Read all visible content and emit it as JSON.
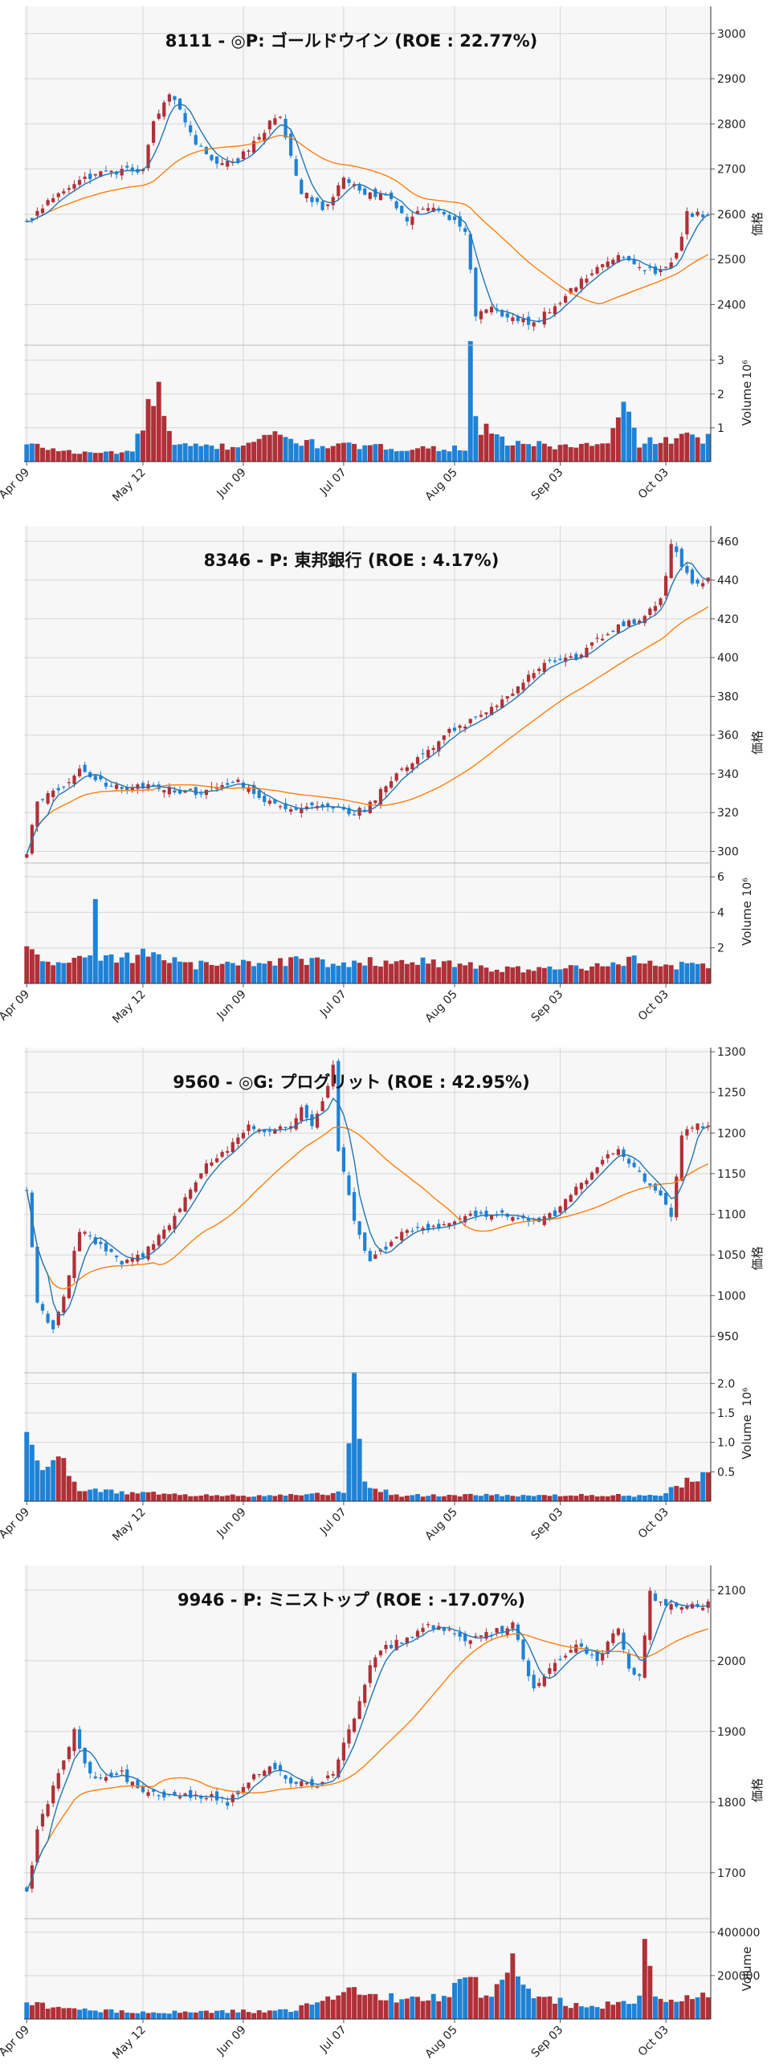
{
  "colors": {
    "up": "#b03038",
    "down": "#1f82d6",
    "ma_short": "#1f77b4",
    "ma_long": "#ff7f0e",
    "grid": "#d6d6d6",
    "panel": "#f7f7f7"
  },
  "x_tick_labels": [
    "Apr 09",
    "May 12",
    "Jun 09",
    "Jul 07",
    "Aug 05",
    "Sep 03",
    "Oct 03"
  ],
  "chart_data": [
    {
      "type": "candlestick",
      "title": "8111 - ◎P: ゴールドウイン (ROE : 22.77%)",
      "ylabel": "価格",
      "volume_label": "Volume",
      "volume_exponent": "10⁶",
      "ylim": [
        2310,
        3060
      ],
      "y_ticks": [
        2400,
        2500,
        2600,
        2700,
        2800,
        2900,
        3000
      ],
      "volume_ylim": [
        0,
        3.3
      ],
      "volume_ticks": [
        1,
        2,
        3
      ],
      "volume_tick_labels": [
        "1",
        "2",
        "3"
      ],
      "anchors": [
        [
          0,
          2580
        ],
        [
          6,
          2650
        ],
        [
          13,
          2690
        ],
        [
          22,
          2700
        ],
        [
          24,
          2800
        ],
        [
          27,
          2870
        ],
        [
          32,
          2760
        ],
        [
          36,
          2710
        ],
        [
          40,
          2720
        ],
        [
          46,
          2800
        ],
        [
          48,
          2810
        ],
        [
          52,
          2650
        ],
        [
          56,
          2610
        ],
        [
          60,
          2680
        ],
        [
          64,
          2650
        ],
        [
          68,
          2640
        ],
        [
          72,
          2590
        ],
        [
          76,
          2620
        ],
        [
          80,
          2590
        ],
        [
          83,
          2560
        ],
        [
          85,
          2380
        ],
        [
          88,
          2390
        ],
        [
          92,
          2370
        ],
        [
          96,
          2360
        ],
        [
          100,
          2400
        ],
        [
          104,
          2440
        ],
        [
          108,
          2480
        ],
        [
          112,
          2510
        ],
        [
          116,
          2480
        ],
        [
          120,
          2470
        ],
        [
          123,
          2510
        ],
        [
          125,
          2600
        ]
      ],
      "volume_anchors": [
        [
          0,
          0.5
        ],
        [
          10,
          0.25
        ],
        [
          20,
          0.3
        ],
        [
          25,
          2.3
        ],
        [
          26,
          1.25
        ],
        [
          28,
          0.45
        ],
        [
          40,
          0.45
        ],
        [
          45,
          0.8
        ],
        [
          55,
          0.5
        ],
        [
          70,
          0.4
        ],
        [
          83,
          0.4
        ],
        [
          84,
          3.0
        ],
        [
          85,
          1.1
        ],
        [
          90,
          0.6
        ],
        [
          100,
          0.45
        ],
        [
          110,
          0.5
        ],
        [
          113,
          1.6
        ],
        [
          116,
          0.55
        ],
        [
          125,
          0.7
        ]
      ]
    },
    {
      "type": "candlestick",
      "title": "8346 - P: 東邦銀行 (ROE : 4.17%)",
      "ylabel": "価格",
      "volume_label": "Volume",
      "volume_exponent": "10⁶",
      "ylim": [
        294,
        468
      ],
      "y_ticks": [
        300,
        320,
        340,
        360,
        380,
        400,
        420,
        440,
        460
      ],
      "volume_ylim": [
        0,
        6.5
      ],
      "volume_ticks": [
        2,
        4,
        6
      ],
      "volume_tick_labels": [
        "2",
        "4",
        "6"
      ],
      "anchors": [
        [
          0,
          300
        ],
        [
          2,
          325
        ],
        [
          6,
          332
        ],
        [
          10,
          341
        ],
        [
          14,
          336
        ],
        [
          18,
          332
        ],
        [
          24,
          334
        ],
        [
          32,
          330
        ],
        [
          40,
          336
        ],
        [
          44,
          328
        ],
        [
          48,
          322
        ],
        [
          56,
          323
        ],
        [
          62,
          320
        ],
        [
          64,
          322
        ],
        [
          70,
          340
        ],
        [
          76,
          352
        ],
        [
          80,
          362
        ],
        [
          86,
          370
        ],
        [
          92,
          383
        ],
        [
          98,
          398
        ],
        [
          104,
          400
        ],
        [
          110,
          413
        ],
        [
          116,
          420
        ],
        [
          120,
          429
        ],
        [
          122,
          458
        ],
        [
          124,
          448
        ],
        [
          126,
          438
        ],
        [
          128,
          440
        ]
      ],
      "volume_anchors": [
        [
          0,
          2.0
        ],
        [
          5,
          1.0
        ],
        [
          12,
          1.5
        ],
        [
          13,
          5.8
        ],
        [
          14,
          1.4
        ],
        [
          20,
          1.5
        ],
        [
          25,
          1.7
        ],
        [
          30,
          1.0
        ],
        [
          40,
          1.1
        ],
        [
          50,
          1.3
        ],
        [
          60,
          1.1
        ],
        [
          70,
          1.3
        ],
        [
          80,
          1.1
        ],
        [
          90,
          0.8
        ],
        [
          100,
          0.8
        ],
        [
          110,
          1.0
        ],
        [
          114,
          1.4
        ],
        [
          118,
          1.1
        ],
        [
          128,
          0.9
        ]
      ]
    },
    {
      "type": "candlestick",
      "title": "9560 - ◎G: プログリット (ROE : 42.95%)",
      "ylabel": "価格",
      "volume_label": "Volume",
      "volume_exponent": "10⁶",
      "ylim": [
        905,
        1305
      ],
      "y_ticks": [
        950,
        1000,
        1050,
        1100,
        1150,
        1200,
        1250,
        1300
      ],
      "volume_ylim": [
        0,
        2.1
      ],
      "volume_ticks": [
        0.5,
        1.0,
        1.5,
        2.0
      ],
      "volume_tick_labels": [
        "0.5",
        "1.0",
        "1.5",
        "2.0"
      ],
      "anchors": [
        [
          0,
          1130
        ],
        [
          2,
          990
        ],
        [
          5,
          960
        ],
        [
          7,
          1000
        ],
        [
          10,
          1080
        ],
        [
          14,
          1060
        ],
        [
          18,
          1040
        ],
        [
          22,
          1050
        ],
        [
          26,
          1080
        ],
        [
          30,
          1120
        ],
        [
          34,
          1160
        ],
        [
          38,
          1180
        ],
        [
          42,
          1210
        ],
        [
          46,
          1200
        ],
        [
          50,
          1210
        ],
        [
          52,
          1230
        ],
        [
          54,
          1210
        ],
        [
          56,
          1240
        ],
        [
          58,
          1280
        ],
        [
          59,
          1180
        ],
        [
          62,
          1090
        ],
        [
          65,
          1040
        ],
        [
          68,
          1060
        ],
        [
          72,
          1080
        ],
        [
          78,
          1085
        ],
        [
          84,
          1100
        ],
        [
          90,
          1100
        ],
        [
          96,
          1090
        ],
        [
          100,
          1100
        ],
        [
          104,
          1130
        ],
        [
          108,
          1160
        ],
        [
          112,
          1180
        ],
        [
          116,
          1150
        ],
        [
          120,
          1120
        ],
        [
          122,
          1100
        ],
        [
          124,
          1200
        ],
        [
          126,
          1210
        ]
      ],
      "volume_anchors": [
        [
          0,
          1.1
        ],
        [
          4,
          0.5
        ],
        [
          6,
          0.9
        ],
        [
          10,
          0.2
        ],
        [
          20,
          0.15
        ],
        [
          30,
          0.1
        ],
        [
          50,
          0.1
        ],
        [
          60,
          0.15
        ],
        [
          62,
          2.0
        ],
        [
          63,
          0.9
        ],
        [
          64,
          0.3
        ],
        [
          70,
          0.1
        ],
        [
          100,
          0.1
        ],
        [
          120,
          0.1
        ],
        [
          126,
          0.4
        ]
      ]
    },
    {
      "type": "candlestick",
      "title": "9946 - P: ミニストップ (ROE : -17.07%)",
      "ylabel": "価格",
      "volume_label": "Volume",
      "volume_exponent": "",
      "ylim": [
        1635,
        2135
      ],
      "y_ticks": [
        1700,
        1800,
        1900,
        2000,
        2100
      ],
      "volume_ylim": [
        0,
        440000
      ],
      "volume_ticks": [
        200000,
        400000
      ],
      "volume_tick_labels": [
        "200000",
        "400000"
      ],
      "anchors": [
        [
          0,
          1670
        ],
        [
          2,
          1760
        ],
        [
          5,
          1820
        ],
        [
          9,
          1900
        ],
        [
          11,
          1850
        ],
        [
          14,
          1830
        ],
        [
          18,
          1840
        ],
        [
          22,
          1810
        ],
        [
          30,
          1810
        ],
        [
          34,
          1810
        ],
        [
          38,
          1800
        ],
        [
          42,
          1830
        ],
        [
          46,
          1850
        ],
        [
          50,
          1830
        ],
        [
          54,
          1820
        ],
        [
          58,
          1840
        ],
        [
          62,
          1920
        ],
        [
          65,
          1990
        ],
        [
          68,
          2020
        ],
        [
          72,
          2030
        ],
        [
          76,
          2050
        ],
        [
          80,
          2040
        ],
        [
          84,
          2030
        ],
        [
          88,
          2040
        ],
        [
          92,
          2050
        ],
        [
          96,
          1960
        ],
        [
          100,
          2000
        ],
        [
          104,
          2020
        ],
        [
          108,
          2000
        ],
        [
          112,
          2050
        ],
        [
          114,
          1990
        ],
        [
          116,
          1980
        ],
        [
          118,
          2100
        ],
        [
          119,
          2080
        ]
      ],
      "volume_anchors": [
        [
          0,
          70000
        ],
        [
          10,
          40000
        ],
        [
          30,
          30000
        ],
        [
          50,
          40000
        ],
        [
          58,
          90000
        ],
        [
          60,
          150000
        ],
        [
          70,
          90000
        ],
        [
          80,
          100000
        ],
        [
          84,
          250000
        ],
        [
          86,
          80000
        ],
        [
          92,
          250000
        ],
        [
          96,
          110000
        ],
        [
          106,
          50000
        ],
        [
          116,
          90000
        ],
        [
          117,
          380000
        ],
        [
          119,
          100000
        ]
      ]
    }
  ]
}
